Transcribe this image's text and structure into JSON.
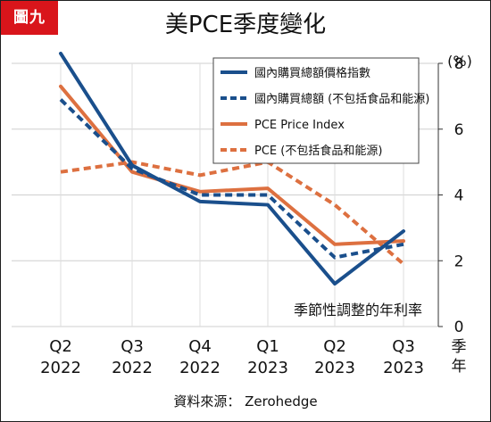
{
  "badge": "圖九",
  "chart_data": {
    "type": "line",
    "title": "美PCE季度變化",
    "x_label": "季年",
    "y_unit": "(%)",
    "y_label": "季節性調整的年利率",
    "ylim": [
      0,
      8
    ],
    "y_ticks": [
      0,
      2,
      4,
      6,
      8
    ],
    "categories": [
      [
        "Q2",
        "2022"
      ],
      [
        "Q3",
        "2022"
      ],
      [
        "Q4",
        "2022"
      ],
      [
        "Q1",
        "2023"
      ],
      [
        "Q2",
        "2023"
      ],
      [
        "Q3",
        "2023"
      ]
    ],
    "grid": true,
    "legend_position": "top-right",
    "series": [
      {
        "name": "國內購買總額價格指數",
        "color": "#1a4f8c",
        "dash": false,
        "values": [
          8.3,
          4.9,
          3.8,
          3.7,
          1.3,
          2.9
        ]
      },
      {
        "name": "國內購買總額 (不包括食品和能源)",
        "color": "#1a4f8c",
        "dash": true,
        "values": [
          6.9,
          4.8,
          4.0,
          4.0,
          2.1,
          2.5
        ]
      },
      {
        "name": "PCE Price Index",
        "color": "#dd7040",
        "dash": false,
        "values": [
          7.3,
          4.7,
          4.1,
          4.2,
          2.5,
          2.6
        ]
      },
      {
        "name": "PCE  (不包括食品和能源)",
        "color": "#dd7040",
        "dash": true,
        "values": [
          4.7,
          5.0,
          4.6,
          5.0,
          3.7,
          1.9
        ]
      }
    ]
  },
  "source": "資料來源： Zerohedge"
}
